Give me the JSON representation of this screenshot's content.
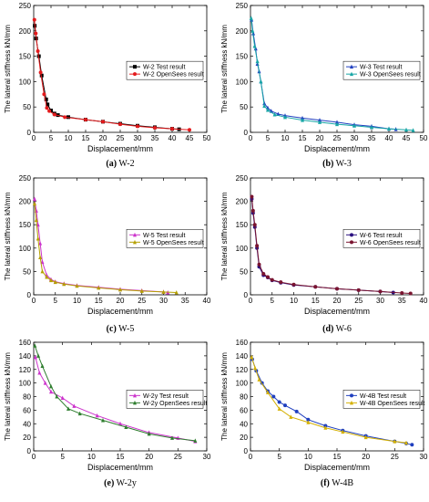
{
  "chart_data": [
    {
      "type": "line",
      "caption_letter": "(a)",
      "caption_name": "W-2",
      "xlabel": "Displacement/mm",
      "ylabel": "The lateral stiffness kN/mm",
      "xlim": [
        0,
        50
      ],
      "ylim": [
        0,
        250
      ],
      "xticks": [
        0,
        5,
        10,
        15,
        20,
        25,
        30,
        35,
        40,
        45,
        50
      ],
      "yticks": [
        0,
        50,
        100,
        150,
        200,
        250
      ],
      "legend_position": "top-right",
      "series": [
        {
          "name": "W-2 Test result",
          "color": "#000000",
          "marker": "square",
          "points": [
            [
              0.3,
              210
            ],
            [
              0.7,
              185
            ],
            [
              1.5,
              150
            ],
            [
              2.3,
              112
            ],
            [
              3.6,
              65
            ],
            [
              4,
              55
            ],
            [
              5,
              43
            ],
            [
              6,
              37
            ],
            [
              7,
              34
            ],
            [
              10,
              30
            ],
            [
              15,
              25
            ],
            [
              20,
              21
            ],
            [
              25,
              17
            ],
            [
              30,
              13
            ],
            [
              35,
              10
            ],
            [
              40,
              7
            ],
            [
              42,
              6
            ]
          ]
        },
        {
          "name": "W-2 OpenSees result",
          "color": "#e41a1c",
          "marker": "circle",
          "points": [
            [
              0.2,
              222
            ],
            [
              0.6,
              195
            ],
            [
              1.2,
              160
            ],
            [
              2,
              118
            ],
            [
              3,
              75
            ],
            [
              3.8,
              48
            ],
            [
              4.5,
              42
            ],
            [
              6,
              35
            ],
            [
              9,
              30
            ],
            [
              15,
              25
            ],
            [
              20,
              21
            ],
            [
              25,
              16
            ],
            [
              30,
              12
            ],
            [
              35,
              9
            ],
            [
              40,
              7
            ],
            [
              45,
              5
            ]
          ]
        }
      ]
    },
    {
      "type": "line",
      "caption_letter": "(b)",
      "caption_name": "W-3",
      "xlabel": "Displacement/mm",
      "ylabel": "The lateral stiffness kN/mm",
      "xlim": [
        0,
        50
      ],
      "ylim": [
        0,
        250
      ],
      "xticks": [
        0,
        5,
        10,
        15,
        20,
        25,
        30,
        35,
        40,
        45,
        50
      ],
      "yticks": [
        0,
        50,
        100,
        150,
        200,
        250
      ],
      "legend_position": "top-right",
      "series": [
        {
          "name": "W-3 Test result",
          "color": "#1f3fbf",
          "marker": "triangle",
          "points": [
            [
              0.3,
              222
            ],
            [
              0.8,
              195
            ],
            [
              1.5,
              165
            ],
            [
              2,
              135
            ],
            [
              2.5,
              120
            ],
            [
              3,
              100
            ],
            [
              4,
              57
            ],
            [
              5,
              48
            ],
            [
              6,
              42
            ],
            [
              8,
              36
            ],
            [
              10,
              33
            ],
            [
              15,
              28
            ],
            [
              20,
              24
            ],
            [
              25,
              20
            ],
            [
              30,
              15
            ],
            [
              35,
              12
            ],
            [
              40,
              7
            ],
            [
              42,
              6
            ]
          ]
        },
        {
          "name": "W-3 OpenSees result",
          "color": "#17a6a6",
          "marker": "triangle",
          "points": [
            [
              0.2,
              225
            ],
            [
              0.6,
              200
            ],
            [
              1.2,
              170
            ],
            [
              2,
              140
            ],
            [
              3,
              100
            ],
            [
              4,
              52
            ],
            [
              5,
              44
            ],
            [
              7,
              35
            ],
            [
              10,
              30
            ],
            [
              15,
              24
            ],
            [
              20,
              20
            ],
            [
              25,
              16
            ],
            [
              30,
              13
            ],
            [
              35,
              10
            ],
            [
              40,
              7
            ],
            [
              45,
              5
            ],
            [
              47,
              4
            ]
          ]
        }
      ]
    },
    {
      "type": "line",
      "caption_letter": "(c)",
      "caption_name": "W-5",
      "xlabel": "Displacement/mm",
      "ylabel": "The lateral stiffness kN/mm",
      "xlim": [
        0,
        40
      ],
      "ylim": [
        0,
        250
      ],
      "xticks": [
        0,
        5,
        10,
        15,
        20,
        25,
        30,
        35,
        40
      ],
      "yticks": [
        0,
        50,
        100,
        150,
        200,
        250
      ],
      "legend_position": "top-right",
      "series": [
        {
          "name": "W-5 Test result",
          "color": "#cc33cc",
          "marker": "triangle",
          "points": [
            [
              0.2,
              205
            ],
            [
              0.6,
              180
            ],
            [
              1,
              150
            ],
            [
              1.5,
              110
            ],
            [
              2,
              70
            ],
            [
              3,
              42
            ],
            [
              4,
              33
            ],
            [
              5,
              28
            ],
            [
              7,
              24
            ],
            [
              10,
              20
            ],
            [
              15,
              16
            ],
            [
              20,
              12
            ],
            [
              25,
              9
            ],
            [
              30,
              6
            ],
            [
              31,
              5
            ]
          ]
        },
        {
          "name": "W-5 OpenSees result",
          "color": "#b5a000",
          "marker": "triangle",
          "points": [
            [
              0.2,
              195
            ],
            [
              0.6,
              160
            ],
            [
              1,
              120
            ],
            [
              1.5,
              80
            ],
            [
              2,
              50
            ],
            [
              3,
              38
            ],
            [
              4,
              31
            ],
            [
              5,
              27
            ],
            [
              7,
              23
            ],
            [
              10,
              19
            ],
            [
              15,
              15
            ],
            [
              20,
              11
            ],
            [
              25,
              8
            ],
            [
              30,
              6
            ],
            [
              33,
              5
            ]
          ]
        }
      ]
    },
    {
      "type": "line",
      "caption_letter": "(d)",
      "caption_name": "W-6",
      "xlabel": "Displacement/mm",
      "ylabel": "The lateral stiffness kN/mm",
      "xlim": [
        0,
        40
      ],
      "ylim": [
        0,
        250
      ],
      "xticks": [
        0,
        5,
        10,
        15,
        20,
        25,
        30,
        35,
        40
      ],
      "yticks": [
        0,
        50,
        100,
        150,
        200,
        250
      ],
      "legend_position": "top-right",
      "series": [
        {
          "name": "W-6 Test result",
          "color": "#2a1080",
          "marker": "circle",
          "points": [
            [
              0.3,
              205
            ],
            [
              0.6,
              175
            ],
            [
              1,
              145
            ],
            [
              1.5,
              100
            ],
            [
              2,
              60
            ],
            [
              3,
              42
            ],
            [
              4,
              37
            ],
            [
              5,
              31
            ],
            [
              7,
              26
            ],
            [
              10,
              21
            ],
            [
              15,
              17
            ],
            [
              20,
              13
            ],
            [
              25,
              10
            ],
            [
              30,
              7
            ],
            [
              33,
              5
            ]
          ]
        },
        {
          "name": "W-6 OpenSees result",
          "color": "#7a1430",
          "marker": "circle",
          "points": [
            [
              0.3,
              210
            ],
            [
              0.6,
              180
            ],
            [
              1,
              150
            ],
            [
              1.5,
              105
            ],
            [
              2,
              65
            ],
            [
              3,
              45
            ],
            [
              4,
              38
            ],
            [
              5,
              32
            ],
            [
              7,
              27
            ],
            [
              10,
              22
            ],
            [
              15,
              17
            ],
            [
              20,
              13
            ],
            [
              25,
              10
            ],
            [
              30,
              7
            ],
            [
              35,
              4
            ],
            [
              37,
              3
            ]
          ]
        }
      ]
    },
    {
      "type": "line",
      "caption_letter": "(e)",
      "caption_name": "W-2y",
      "xlabel": "Displacement/mm",
      "ylabel": "The lateral stiffness kN/mm",
      "xlim": [
        0,
        30
      ],
      "ylim": [
        0,
        160
      ],
      "xticks": [
        0,
        5,
        10,
        15,
        20,
        25,
        30
      ],
      "yticks": [
        0,
        20,
        40,
        60,
        80,
        100,
        120,
        140,
        160
      ],
      "legend_position": "top-right",
      "series": [
        {
          "name": "W-2y Test result",
          "color": "#cc33cc",
          "marker": "triangle",
          "points": [
            [
              0.3,
              138
            ],
            [
              1,
              115
            ],
            [
              2,
              100
            ],
            [
              3,
              87
            ],
            [
              5,
              78
            ],
            [
              7,
              66
            ],
            [
              11,
              52
            ],
            [
              15,
              40
            ],
            [
              20,
              27
            ],
            [
              25,
              19
            ],
            [
              28,
              14
            ]
          ]
        },
        {
          "name": "W-2y OpenSees result",
          "color": "#2e7d2e",
          "marker": "triangle",
          "points": [
            [
              0.2,
              155
            ],
            [
              0.8,
              140
            ],
            [
              1.5,
              125
            ],
            [
              3,
              95
            ],
            [
              4,
              80
            ],
            [
              6,
              62
            ],
            [
              8,
              55
            ],
            [
              12,
              45
            ],
            [
              16,
              35
            ],
            [
              20,
              25
            ],
            [
              24,
              19
            ],
            [
              28,
              15
            ]
          ]
        }
      ]
    },
    {
      "type": "line",
      "caption_letter": "(f)",
      "caption_name": "W-4B",
      "xlabel": "Displacement/mm",
      "ylabel": "The lateral stiffness kN/mm",
      "xlim": [
        0,
        30
      ],
      "ylim": [
        0,
        160
      ],
      "xticks": [
        0,
        5,
        10,
        15,
        20,
        25,
        30
      ],
      "yticks": [
        0,
        20,
        40,
        60,
        80,
        100,
        120,
        140,
        160
      ],
      "legend_position": "top-right",
      "series": [
        {
          "name": "W-4B Test result",
          "color": "#1f3fbf",
          "marker": "circle",
          "points": [
            [
              0.3,
              135
            ],
            [
              1,
              118
            ],
            [
              2,
              100
            ],
            [
              3,
              88
            ],
            [
              4,
              80
            ],
            [
              5,
              72
            ],
            [
              6,
              67
            ],
            [
              8,
              58
            ],
            [
              10,
              46
            ],
            [
              13,
              37
            ],
            [
              16,
              30
            ],
            [
              20,
              22
            ],
            [
              25,
              14
            ],
            [
              27,
              11
            ],
            [
              28,
              9
            ]
          ]
        },
        {
          "name": "W-4B OpenSees result",
          "color": "#d4b000",
          "marker": "triangle",
          "points": [
            [
              0.2,
              138
            ],
            [
              0.8,
              122
            ],
            [
              1.5,
              105
            ],
            [
              3,
              86
            ],
            [
              5,
              62
            ],
            [
              7,
              50
            ],
            [
              10,
              42
            ],
            [
              13,
              34
            ],
            [
              16,
              28
            ],
            [
              20,
              20
            ],
            [
              25,
              14
            ],
            [
              27,
              12
            ]
          ]
        }
      ]
    }
  ]
}
